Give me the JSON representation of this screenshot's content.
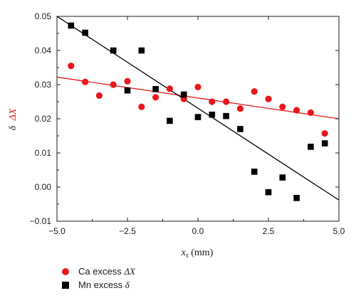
{
  "chart_data": {
    "type": "scatter",
    "xlabel": {
      "main": "x",
      "sub": "s",
      "unit": " (mm)"
    },
    "ylabel": {
      "delta": "δ",
      "deltaX": "ΔX"
    },
    "xlim": [
      -5.0,
      5.0
    ],
    "ylim": [
      -0.01,
      0.05
    ],
    "xticks": [
      "−5.0",
      "−2.5",
      "0.0",
      "2.5",
      "5.0"
    ],
    "xtick_values": [
      -5.0,
      -2.5,
      0.0,
      2.5,
      5.0
    ],
    "yticks": [
      "−0.01",
      "0.00",
      "0.01",
      "0.02",
      "0.03",
      "0.04",
      "0.05"
    ],
    "ytick_values": [
      -0.01,
      0.0,
      0.01,
      0.02,
      0.03,
      0.04,
      0.05
    ],
    "grid": false,
    "legend_placement": "below-left",
    "series": [
      {
        "name": "Ca excess ΔX",
        "legend_prefix": "Ca excess ",
        "legend_symbol": "ΔX",
        "marker": "circle",
        "color": "#e8181c",
        "points": [
          [
            -4.5,
            0.0355
          ],
          [
            -4.0,
            0.0308
          ],
          [
            -3.5,
            0.0268
          ],
          [
            -3.0,
            0.03
          ],
          [
            -2.5,
            0.031
          ],
          [
            -2.0,
            0.0235
          ],
          [
            -1.5,
            0.0263
          ],
          [
            -1.0,
            0.0288
          ],
          [
            -0.5,
            0.0258
          ],
          [
            0.0,
            0.0293
          ],
          [
            0.5,
            0.025
          ],
          [
            1.0,
            0.025
          ],
          [
            1.5,
            0.023
          ],
          [
            2.0,
            0.028
          ],
          [
            2.5,
            0.0258
          ],
          [
            3.0,
            0.0235
          ],
          [
            3.5,
            0.0225
          ],
          [
            4.0,
            0.0218
          ],
          [
            4.5,
            0.0157
          ]
        ],
        "fit": [
          [
            -5.0,
            0.0322
          ],
          [
            5.0,
            0.02
          ]
        ]
      },
      {
        "name": "Mn excess δ",
        "legend_prefix": "Mn excess ",
        "legend_symbol": "δ",
        "marker": "square",
        "color": "#000000",
        "points": [
          [
            -4.5,
            0.0473
          ],
          [
            -4.0,
            0.0452
          ],
          [
            -3.0,
            0.04
          ],
          [
            -2.5,
            0.0283
          ],
          [
            -2.0,
            0.04
          ],
          [
            -1.5,
            0.0287
          ],
          [
            -1.0,
            0.0194
          ],
          [
            -0.5,
            0.0271
          ],
          [
            0.0,
            0.0205
          ],
          [
            0.5,
            0.0212
          ],
          [
            1.0,
            0.0208
          ],
          [
            1.5,
            0.017
          ],
          [
            2.0,
            0.0045
          ],
          [
            2.5,
            -0.0015
          ],
          [
            3.0,
            0.0028
          ],
          [
            3.5,
            -0.0032
          ],
          [
            4.0,
            0.0118
          ],
          [
            4.5,
            0.0128
          ]
        ],
        "fit": [
          [
            -5.0,
            0.05
          ],
          [
            5.0,
            -0.0038
          ]
        ]
      }
    ],
    "colors": {
      "axis": "#1a1a1a",
      "ca": "#e8181c",
      "mn": "#000000",
      "ca_line": "#e8181c",
      "mn_line": "#000000"
    }
  }
}
